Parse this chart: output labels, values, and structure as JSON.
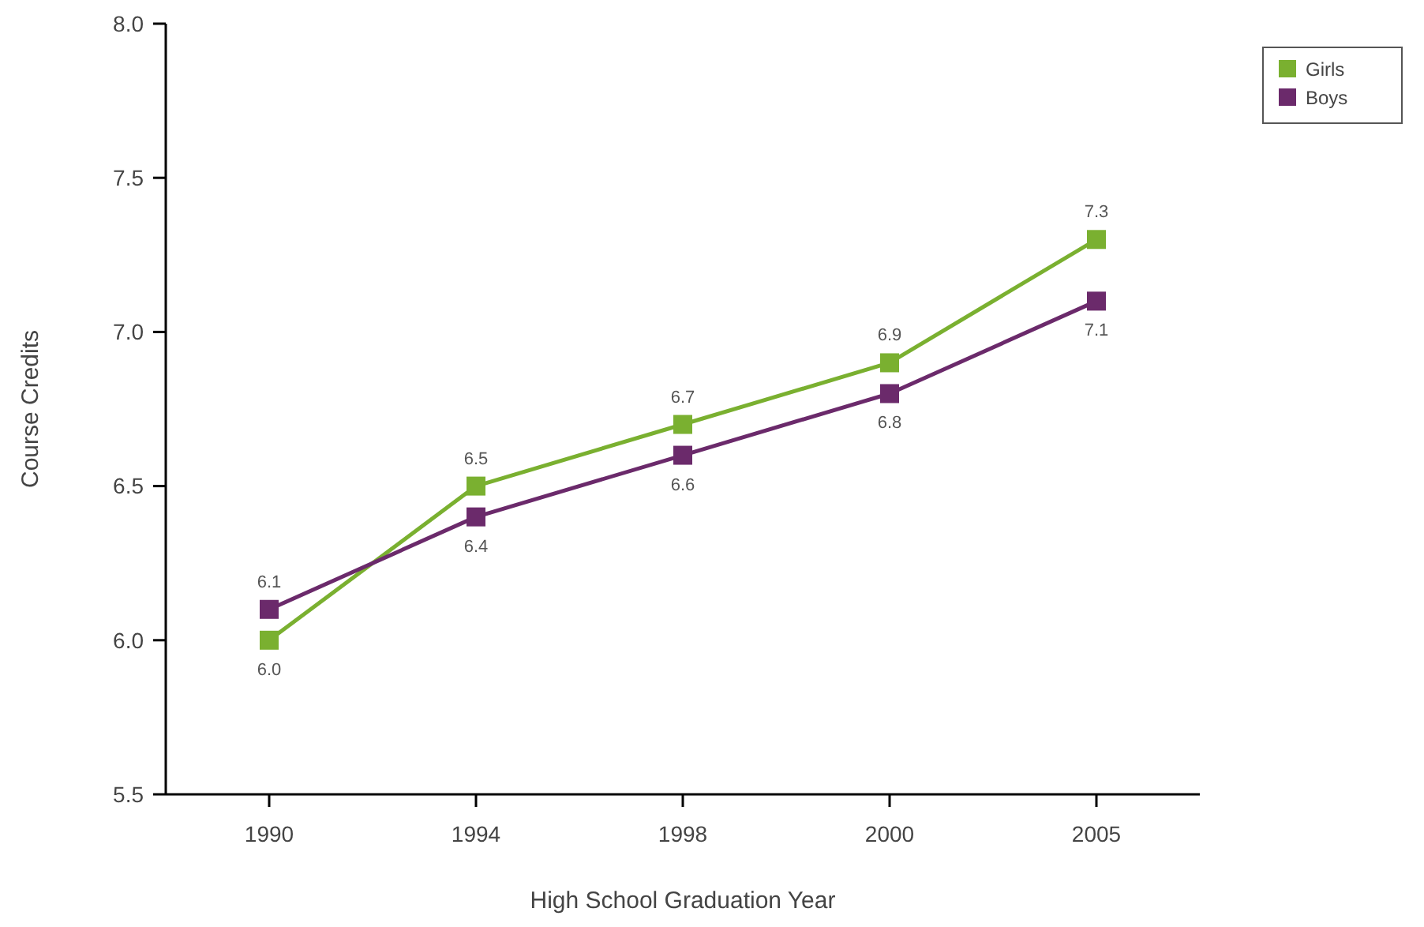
{
  "chart_data": {
    "type": "line",
    "xlabel": "High School Graduation Year",
    "ylabel": "Course Credits",
    "categories": [
      "1990",
      "1994",
      "1998",
      "2000",
      "2005"
    ],
    "series": [
      {
        "name": "Girls",
        "color": "#7ab030",
        "values": [
          6.0,
          6.5,
          6.7,
          6.9,
          7.3
        ],
        "value_labels": [
          "6.0",
          "6.5",
          "6.7",
          "6.9",
          "7.3"
        ]
      },
      {
        "name": "Boys",
        "color": "#6b2a6b",
        "values": [
          6.1,
          6.4,
          6.6,
          6.8,
          7.1
        ],
        "value_labels": [
          "6.1",
          "6.4",
          "6.6",
          "6.8",
          "7.1"
        ]
      }
    ],
    "ylim": [
      5.5,
      8.0
    ],
    "yticks": [
      5.5,
      {
        "value": 6,
        "label": "6.0"
      },
      6.5,
      {
        "value": 7,
        "label": "7.0"
      },
      7.5,
      {
        "value": 8,
        "label": "8.0"
      }
    ],
    "grid": false,
    "legend": "top right",
    "marker": "square",
    "line_style": "solid"
  }
}
